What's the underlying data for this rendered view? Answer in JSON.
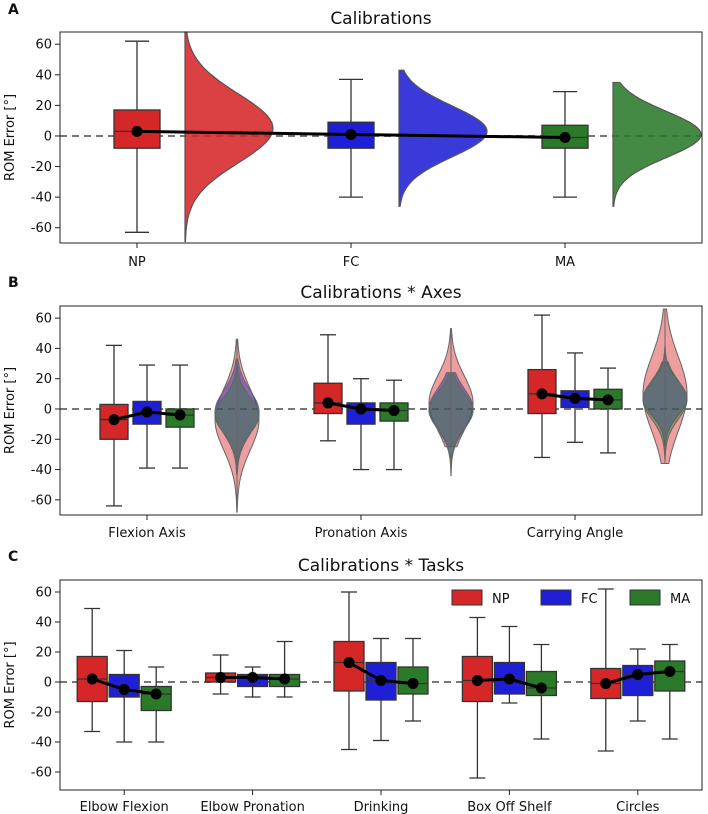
{
  "chart_data": [
    {
      "panel": "A",
      "type": "box+violin",
      "title": "Calibrations",
      "ylabel": "ROM Error [°]",
      "ylim": [
        -70,
        68
      ],
      "yticks": [
        -60,
        -40,
        -20,
        0,
        20,
        40,
        60
      ],
      "categories": [
        "NP",
        "FC",
        "MA"
      ],
      "colors": [
        "#d62728",
        "#1f1fd6",
        "#2a7a2a"
      ],
      "boxes": [
        {
          "name": "NP",
          "whisker_low": -63,
          "q1": -8,
          "median": 3,
          "q3": 17,
          "whisker_high": 62,
          "mean": 3
        },
        {
          "name": "FC",
          "whisker_low": -40,
          "q1": -8,
          "median": 1,
          "q3": 9,
          "whisker_high": 37,
          "mean": 1
        },
        {
          "name": "MA",
          "whisker_low": -40,
          "q1": -8,
          "median": -1,
          "q3": 7,
          "whisker_high": 29,
          "mean": -1
        }
      ]
    },
    {
      "panel": "B",
      "type": "box+violin",
      "title": "Calibrations * Axes",
      "ylabel": "ROM Error [°]",
      "ylim": [
        -70,
        68
      ],
      "yticks": [
        -60,
        -40,
        -20,
        0,
        20,
        40,
        60
      ],
      "categories": [
        "Flexion Axis",
        "Pronation Axis",
        "Carrying Angle"
      ],
      "series": [
        {
          "name": "NP",
          "color": "#d62728",
          "boxes": [
            {
              "whisker_low": -64,
              "q1": -20,
              "median": -7,
              "q3": 3,
              "whisker_high": 42,
              "mean": -7
            },
            {
              "whisker_low": -21,
              "q1": -3,
              "median": 4,
              "q3": 17,
              "whisker_high": 49,
              "mean": 4
            },
            {
              "whisker_low": -32,
              "q1": -3,
              "median": 10,
              "q3": 26,
              "whisker_high": 62,
              "mean": 10
            }
          ]
        },
        {
          "name": "FC",
          "color": "#1f1fd6",
          "boxes": [
            {
              "whisker_low": -39,
              "q1": -10,
              "median": -2,
              "q3": 5,
              "whisker_high": 29,
              "mean": -2
            },
            {
              "whisker_low": -40,
              "q1": -10,
              "median": 0,
              "q3": 4,
              "whisker_high": 20,
              "mean": 0
            },
            {
              "whisker_low": -22,
              "q1": 1,
              "median": 7,
              "q3": 12,
              "whisker_high": 37,
              "mean": 7
            }
          ]
        },
        {
          "name": "MA",
          "color": "#2a7a2a",
          "boxes": [
            {
              "whisker_low": -39,
              "q1": -12,
              "median": -4,
              "q3": 0,
              "whisker_high": 29,
              "mean": -4
            },
            {
              "whisker_low": -40,
              "q1": -8,
              "median": -1,
              "q3": 4,
              "whisker_high": 19,
              "mean": -1
            },
            {
              "whisker_low": -29,
              "q1": 0,
              "median": 6,
              "q3": 13,
              "whisker_high": 27,
              "mean": 6
            }
          ]
        }
      ]
    },
    {
      "panel": "C",
      "type": "box",
      "title": "Calibrations * Tasks",
      "ylabel": "ROM Error [°]",
      "ylim": [
        -72,
        68
      ],
      "yticks": [
        -60,
        -40,
        -20,
        0,
        20,
        40,
        60
      ],
      "categories": [
        "Elbow Flexion",
        "Elbow Pronation",
        "Drinking",
        "Box Off Shelf",
        "Circles"
      ],
      "legend": [
        "NP",
        "FC",
        "MA"
      ],
      "legend_position": "top-right",
      "series": [
        {
          "name": "NP",
          "color": "#d62728",
          "boxes": [
            {
              "whisker_low": -33,
              "q1": -13,
              "median": 2,
              "q3": 17,
              "whisker_high": 49,
              "mean": 2
            },
            {
              "whisker_low": -8,
              "q1": 0,
              "median": 3,
              "q3": 6,
              "whisker_high": 18,
              "mean": 3
            },
            {
              "whisker_low": -45,
              "q1": -6,
              "median": 13,
              "q3": 27,
              "whisker_high": 60,
              "mean": 13
            },
            {
              "whisker_low": -64,
              "q1": -13,
              "median": 1,
              "q3": 17,
              "whisker_high": 43,
              "mean": 1
            },
            {
              "whisker_low": -46,
              "q1": -11,
              "median": -1,
              "q3": 9,
              "whisker_high": 62,
              "mean": -1
            }
          ]
        },
        {
          "name": "FC",
          "color": "#1f1fd6",
          "boxes": [
            {
              "whisker_low": -40,
              "q1": -10,
              "median": -5,
              "q3": 5,
              "whisker_high": 21,
              "mean": -5
            },
            {
              "whisker_low": -10,
              "q1": -3,
              "median": 3,
              "q3": 5,
              "whisker_high": 10,
              "mean": 3
            },
            {
              "whisker_low": -39,
              "q1": -12,
              "median": 1,
              "q3": 13,
              "whisker_high": 29,
              "mean": 1
            },
            {
              "whisker_low": -14,
              "q1": -8,
              "median": 2,
              "q3": 13,
              "whisker_high": 37,
              "mean": 2
            },
            {
              "whisker_low": -26,
              "q1": -9,
              "median": 5,
              "q3": 11,
              "whisker_high": 22,
              "mean": 5
            }
          ]
        },
        {
          "name": "MA",
          "color": "#2a7a2a",
          "boxes": [
            {
              "whisker_low": -40,
              "q1": -19,
              "median": -8,
              "q3": -3,
              "whisker_high": 10,
              "mean": -8
            },
            {
              "whisker_low": -10,
              "q1": -3,
              "median": 2,
              "q3": 5,
              "whisker_high": 27,
              "mean": 2
            },
            {
              "whisker_low": -26,
              "q1": -8,
              "median": -1,
              "q3": 10,
              "whisker_high": 29,
              "mean": -1
            },
            {
              "whisker_low": -38,
              "q1": -9,
              "median": -4,
              "q3": 7,
              "whisker_high": 25,
              "mean": -4
            },
            {
              "whisker_low": -38,
              "q1": -6,
              "median": 7,
              "q3": 14,
              "whisker_high": 25,
              "mean": 7
            }
          ]
        }
      ]
    }
  ]
}
